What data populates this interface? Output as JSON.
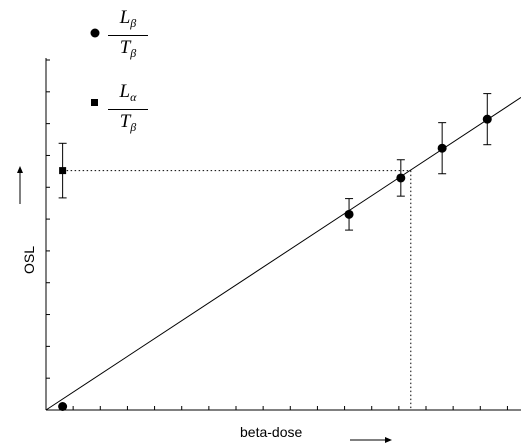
{
  "chart_data": {
    "type": "scatter",
    "title": "",
    "xlabel": "beta-dose",
    "ylabel": "OSL",
    "xlim": [
      0,
      100
    ],
    "ylim": [
      0,
      100
    ],
    "grid": false,
    "legend_position": "top-left",
    "legend": [
      {
        "marker": "circle",
        "num_main": "L",
        "num_sub": "β",
        "den_main": "T",
        "den_sub": "β"
      },
      {
        "marker": "square",
        "num_main": "L",
        "num_sub": "α",
        "den_main": "T",
        "den_sub": "β"
      }
    ],
    "series": [
      {
        "marker": "circle",
        "points": [
          {
            "x": 3.5,
            "y": 1.0,
            "err": 0
          },
          {
            "x": 63.8,
            "y": 55.9,
            "err": 4.5
          },
          {
            "x": 74.7,
            "y": 66.3,
            "err": 5.2
          },
          {
            "x": 83.4,
            "y": 74.8,
            "err": 7.3
          },
          {
            "x": 92.9,
            "y": 83.1,
            "err": 7.3
          }
        ]
      },
      {
        "marker": "square",
        "points": [
          {
            "x": 3.5,
            "y": 68.4,
            "err": 7.8
          }
        ]
      }
    ],
    "fit_line": {
      "x0": 0,
      "y0": 0,
      "x1": 100,
      "y1": 89.3
    },
    "projection": {
      "y": 68.4,
      "x": 76.8
    }
  }
}
